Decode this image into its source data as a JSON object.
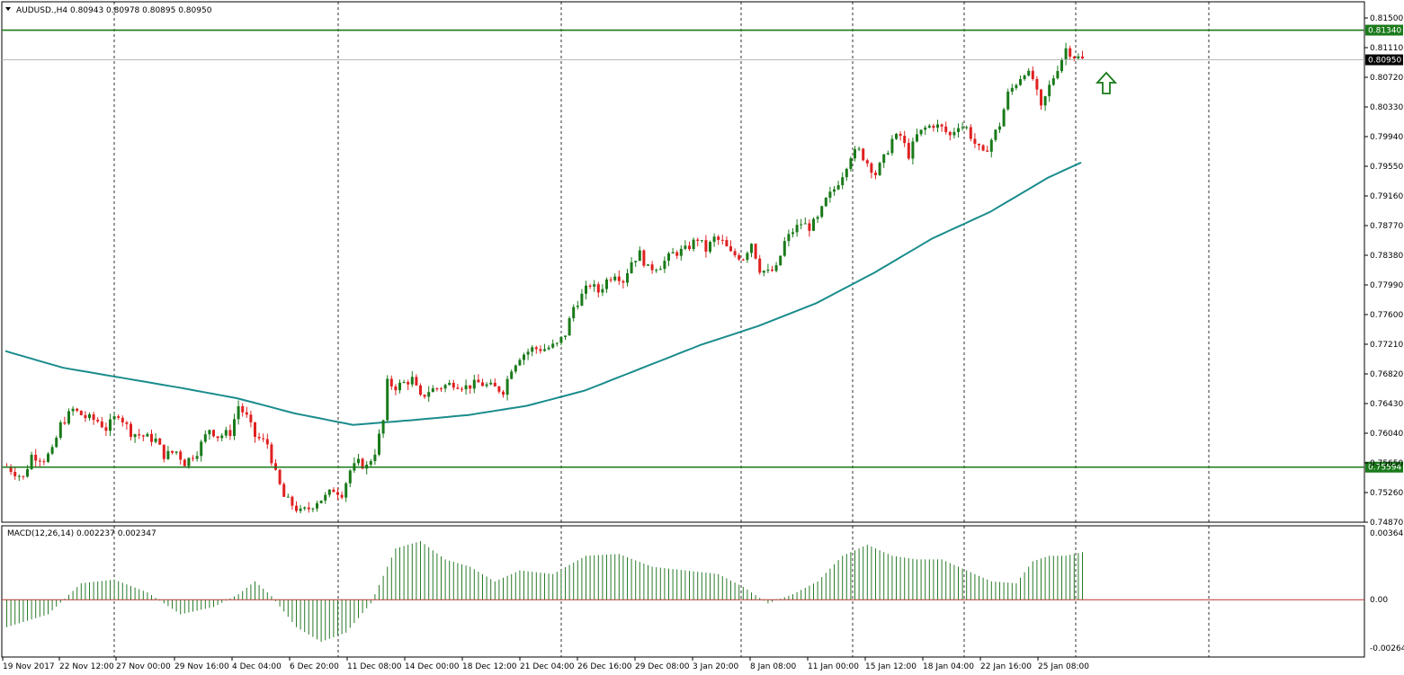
{
  "header": {
    "symbol_line": "AUDUSD.,H4  0.80943 0.80978 0.80895 0.80950",
    "macd_line": "MACD(12,26,14) 0.002237 0.002347"
  },
  "colors": {
    "bull": "#1a7a1a",
    "bear": "#e02020",
    "ma": "#1a8c8c",
    "level": "#1a7a1a",
    "macd": "#2a7a2a",
    "zero": "#c03030",
    "grid": "#000000"
  },
  "chart_data": {
    "type": "candlestick",
    "symbol": "AUDUSD.",
    "timeframe": "H4",
    "ylim": [
      0.7487,
      0.815
    ],
    "price_ticks": [
      "0.81500",
      "0.81110",
      "0.80720",
      "0.80330",
      "0.79940",
      "0.79550",
      "0.79160",
      "0.78770",
      "0.78380",
      "0.77990",
      "0.77600",
      "0.77210",
      "0.76820",
      "0.76430",
      "0.76040",
      "0.75650",
      "0.75260",
      "0.74870"
    ],
    "x_tick_labels": [
      "19 Nov 2017",
      "22 Nov 12:00",
      "27 Nov 00:00",
      "29 Nov 16:00",
      "4 Dec 04:00",
      "6 Dec 20:00",
      "11 Dec 08:00",
      "14 Dec 00:00",
      "18 Dec 12:00",
      "21 Dec 04:00",
      "26 Dec 16:00",
      "29 Dec 08:00",
      "3 Jan 20:00",
      "8 Jan 08:00",
      "11 Jan 00:00",
      "15 Jan 12:00",
      "18 Jan 04:00",
      "22 Jan 16:00",
      "25 Jan 08:00"
    ],
    "levels": [
      {
        "value": 0.8134,
        "label": "0.81340"
      },
      {
        "value": 0.75594,
        "label": "0.75594"
      }
    ],
    "current_price": {
      "value": 0.8095,
      "label": "0.80950"
    },
    "close_path": [
      [
        0,
        0.756
      ],
      [
        4,
        0.7545
      ],
      [
        6,
        0.7575
      ],
      [
        9,
        0.757
      ],
      [
        11,
        0.758
      ],
      [
        13,
        0.7615
      ],
      [
        16,
        0.7635
      ],
      [
        19,
        0.7625
      ],
      [
        22,
        0.762
      ],
      [
        24,
        0.761
      ],
      [
        27,
        0.763
      ],
      [
        30,
        0.7605
      ],
      [
        33,
        0.76
      ],
      [
        36,
        0.7595
      ],
      [
        38,
        0.7575
      ],
      [
        41,
        0.758
      ],
      [
        43,
        0.7565
      ],
      [
        46,
        0.758
      ],
      [
        49,
        0.761
      ],
      [
        51,
        0.76
      ],
      [
        54,
        0.7605
      ],
      [
        56,
        0.764
      ],
      [
        58,
        0.7625
      ],
      [
        60,
        0.76
      ],
      [
        63,
        0.759
      ],
      [
        65,
        0.755
      ],
      [
        67,
        0.752
      ],
      [
        69,
        0.751
      ],
      [
        71,
        0.75
      ],
      [
        73,
        0.7505
      ],
      [
        75,
        0.7515
      ],
      [
        77,
        0.752
      ],
      [
        79,
        0.753
      ],
      [
        81,
        0.7525
      ],
      [
        83,
        0.7555
      ],
      [
        85,
        0.7565
      ],
      [
        87,
        0.756
      ],
      [
        89,
        0.758
      ],
      [
        91,
        0.762
      ],
      [
        92,
        0.767
      ],
      [
        94,
        0.7665
      ],
      [
        96,
        0.767
      ],
      [
        98,
        0.7675
      ],
      [
        100,
        0.765
      ],
      [
        102,
        0.766
      ],
      [
        105,
        0.7665
      ],
      [
        108,
        0.767
      ],
      [
        111,
        0.7665
      ],
      [
        114,
        0.767
      ],
      [
        117,
        0.7665
      ],
      [
        120,
        0.766
      ],
      [
        122,
        0.769
      ],
      [
        124,
        0.7705
      ],
      [
        127,
        0.7715
      ],
      [
        130,
        0.7715
      ],
      [
        133,
        0.772
      ],
      [
        135,
        0.7735
      ],
      [
        137,
        0.777
      ],
      [
        139,
        0.7785
      ],
      [
        141,
        0.78
      ],
      [
        143,
        0.779
      ],
      [
        145,
        0.7805
      ],
      [
        147,
        0.7815
      ],
      [
        149,
        0.7805
      ],
      [
        151,
        0.783
      ],
      [
        153,
        0.784
      ],
      [
        155,
        0.782
      ],
      [
        158,
        0.7825
      ],
      [
        161,
        0.784
      ],
      [
        164,
        0.7845
      ],
      [
        167,
        0.786
      ],
      [
        169,
        0.7845
      ],
      [
        171,
        0.786
      ],
      [
        173,
        0.7855
      ],
      [
        175,
        0.784
      ],
      [
        178,
        0.7835
      ],
      [
        180,
        0.7855
      ],
      [
        182,
        0.782
      ],
      [
        184,
        0.7815
      ],
      [
        186,
        0.782
      ],
      [
        188,
        0.7855
      ],
      [
        190,
        0.787
      ],
      [
        192,
        0.788
      ],
      [
        194,
        0.7875
      ],
      [
        196,
        0.7885
      ],
      [
        198,
        0.791
      ],
      [
        200,
        0.7925
      ],
      [
        202,
        0.7945
      ],
      [
        204,
        0.797
      ],
      [
        206,
        0.7975
      ],
      [
        208,
        0.796
      ],
      [
        210,
        0.7945
      ],
      [
        212,
        0.7965
      ],
      [
        214,
        0.799
      ],
      [
        216,
        0.7995
      ],
      [
        218,
        0.797
      ],
      [
        220,
        0.7995
      ],
      [
        222,
        0.8005
      ],
      [
        224,
        0.801
      ],
      [
        226,
        0.8005
      ],
      [
        228,
        0.7995
      ],
      [
        230,
        0.801
      ],
      [
        232,
        0.8005
      ],
      [
        234,
        0.7985
      ],
      [
        236,
        0.797
      ],
      [
        238,
        0.799
      ],
      [
        240,
        0.801
      ],
      [
        242,
        0.805
      ],
      [
        244,
        0.8065
      ],
      [
        246,
        0.808
      ],
      [
        248,
        0.807
      ],
      [
        250,
        0.803
      ],
      [
        252,
        0.806
      ],
      [
        254,
        0.8085
      ],
      [
        256,
        0.811
      ],
      [
        258,
        0.81
      ],
      [
        260,
        0.8095
      ]
    ],
    "ma_path": [
      [
        0,
        0.7712
      ],
      [
        14,
        0.769
      ],
      [
        28,
        0.7677
      ],
      [
        42,
        0.7664
      ],
      [
        56,
        0.765
      ],
      [
        70,
        0.763
      ],
      [
        84,
        0.7615
      ],
      [
        98,
        0.7621
      ],
      [
        112,
        0.7628
      ],
      [
        126,
        0.764
      ],
      [
        140,
        0.766
      ],
      [
        154,
        0.769
      ],
      [
        168,
        0.772
      ],
      [
        182,
        0.7745
      ],
      [
        196,
        0.7775
      ],
      [
        210,
        0.7815
      ],
      [
        224,
        0.786
      ],
      [
        238,
        0.7895
      ],
      [
        252,
        0.794
      ],
      [
        260,
        0.796
      ]
    ],
    "macd": {
      "label": "MACD(12,26,14)",
      "value_main": 0.002237,
      "value_signal": 0.002347,
      "ylim": [
        -0.00264,
        0.003643
      ],
      "ticks": [
        "0.003643",
        "0.00",
        "-0.00264"
      ],
      "hist_path": [
        [
          0,
          -0.0015
        ],
        [
          10,
          -0.0008
        ],
        [
          18,
          0.0009
        ],
        [
          26,
          0.0011
        ],
        [
          34,
          0.0004
        ],
        [
          42,
          -0.0008
        ],
        [
          50,
          -0.0004
        ],
        [
          56,
          0.0003
        ],
        [
          60,
          0.001
        ],
        [
          64,
          0.0002
        ],
        [
          70,
          -0.0015
        ],
        [
          76,
          -0.0023
        ],
        [
          82,
          -0.0018
        ],
        [
          88,
          -0.0002
        ],
        [
          94,
          0.0028
        ],
        [
          100,
          0.0032
        ],
        [
          106,
          0.0022
        ],
        [
          112,
          0.0018
        ],
        [
          118,
          0.001
        ],
        [
          124,
          0.0016
        ],
        [
          132,
          0.0014
        ],
        [
          140,
          0.0024
        ],
        [
          148,
          0.0025
        ],
        [
          156,
          0.0018
        ],
        [
          164,
          0.0016
        ],
        [
          172,
          0.0014
        ],
        [
          178,
          0.0007
        ],
        [
          184,
          -0.0002
        ],
        [
          190,
          0.0003
        ],
        [
          196,
          0.001
        ],
        [
          202,
          0.0024
        ],
        [
          208,
          0.003
        ],
        [
          214,
          0.0024
        ],
        [
          220,
          0.0022
        ],
        [
          226,
          0.0022
        ],
        [
          232,
          0.0016
        ],
        [
          238,
          0.001
        ],
        [
          244,
          0.0009
        ],
        [
          248,
          0.0021
        ],
        [
          252,
          0.0024
        ],
        [
          256,
          0.0024
        ],
        [
          260,
          0.0026
        ]
      ]
    }
  }
}
